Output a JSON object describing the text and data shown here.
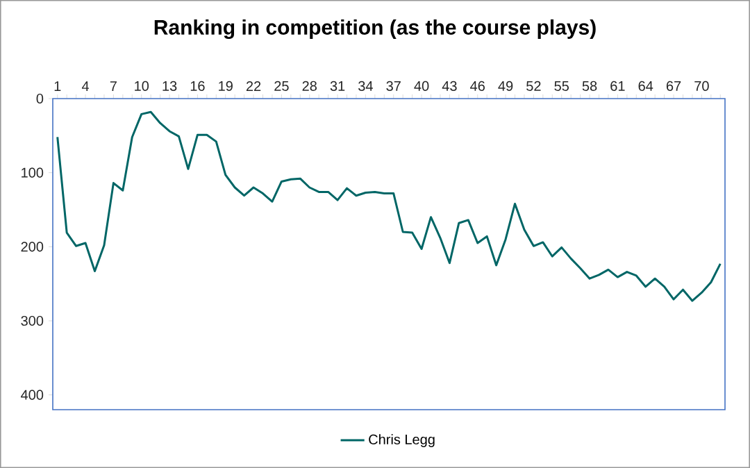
{
  "chart_data": {
    "type": "line",
    "title": "Ranking in competition (as the course plays)",
    "categories": [
      "1",
      null,
      null,
      "4",
      null,
      null,
      "7",
      null,
      null,
      "10",
      null,
      null,
      "13",
      null,
      null,
      "16",
      null,
      null,
      "19",
      null,
      null,
      "22",
      null,
      null,
      "25",
      null,
      null,
      "28",
      null,
      null,
      "31",
      null,
      null,
      "34",
      null,
      null,
      "37",
      null,
      null,
      "40",
      null,
      null,
      "43",
      null,
      null,
      "46",
      null,
      null,
      "49",
      null,
      null,
      "52",
      null,
      null,
      "55",
      null,
      null,
      "58",
      null,
      null,
      "61",
      null,
      null,
      "64",
      null,
      null,
      "67",
      null,
      null,
      "70",
      null,
      null
    ],
    "series": [
      {
        "name": "Chris Legg",
        "color": "#006666",
        "values": [
          52,
          181,
          199,
          195,
          233,
          198,
          114,
          124,
          52,
          21,
          18,
          33,
          44,
          51,
          95,
          49,
          49,
          58,
          103,
          120,
          131,
          120,
          128,
          139,
          112,
          109,
          108,
          120,
          126,
          126,
          137,
          121,
          131,
          127,
          126,
          128,
          128,
          180,
          181,
          203,
          160,
          188,
          222,
          168,
          164,
          195,
          186,
          225,
          190,
          142,
          177,
          199,
          194,
          213,
          201,
          216,
          229,
          243,
          238,
          231,
          241,
          234,
          239,
          254,
          243,
          254,
          271,
          258,
          273,
          262,
          248,
          223
        ]
      }
    ],
    "ylim": [
      420,
      0
    ],
    "yticks": [
      0,
      100,
      200,
      300,
      400
    ],
    "grid": false,
    "legend": "bottom",
    "marker": "none",
    "line_style": "solid"
  }
}
